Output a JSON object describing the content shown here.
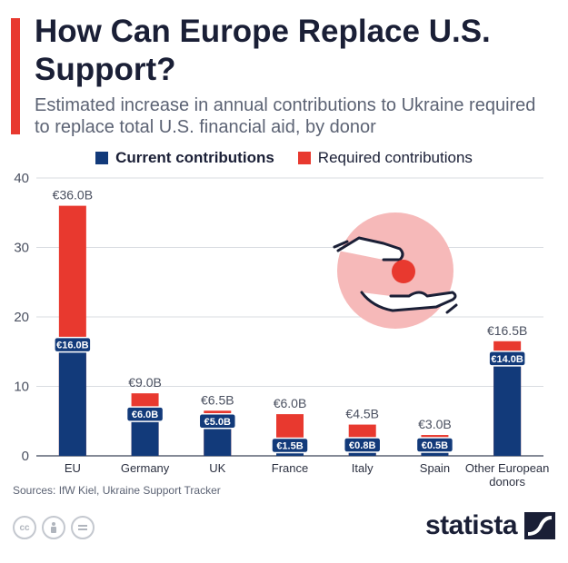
{
  "header": {
    "title": "How Can Europe Replace U.S. Support?",
    "subtitle": "Estimated increase in annual contributions to Ukraine required to replace total U.S. financial aid, by donor"
  },
  "legend": {
    "current_label": "Current contributions",
    "required_label": "Required contributions"
  },
  "colors": {
    "current": "#123a7a",
    "required": "#e8392f",
    "accent": "#e8392f",
    "illustration_circle": "#f6b9b9"
  },
  "chart_data": {
    "type": "bar",
    "stacked": "overlay",
    "title": "How Can Europe Replace U.S. Support?",
    "subtitle": "Estimated increase in annual contributions to Ukraine required to replace total U.S. financial aid, by donor",
    "categories": [
      "EU",
      "Germany",
      "UK",
      "France",
      "Italy",
      "Spain",
      "Other European donors"
    ],
    "series": [
      {
        "name": "Current contributions",
        "values": [
          16.0,
          6.0,
          5.0,
          1.5,
          0.8,
          0.5,
          14.0
        ],
        "labels": [
          "€16.0B",
          "€6.0B",
          "€5.0B",
          "€1.5B",
          "€0.8B",
          "€0.5B",
          "€14.0B"
        ]
      },
      {
        "name": "Required contributions",
        "values": [
          36.0,
          9.0,
          6.5,
          6.0,
          4.5,
          3.0,
          16.5
        ],
        "labels": [
          "€36.0B",
          "€9.0B",
          "€6.5B",
          "€6.0B",
          "€4.5B",
          "€3.0B",
          "€16.5B"
        ]
      }
    ],
    "ylim": [
      0,
      40
    ],
    "yticks": [
      "0",
      "10",
      "20",
      "30",
      "40"
    ],
    "grid": true,
    "legend_position": "top"
  },
  "source": "Sources: IfW Kiel, Ukraine Support Tracker",
  "footer": {
    "license_icons": [
      "cc-icon",
      "by-icon",
      "nd-icon"
    ],
    "brand": "statista"
  }
}
